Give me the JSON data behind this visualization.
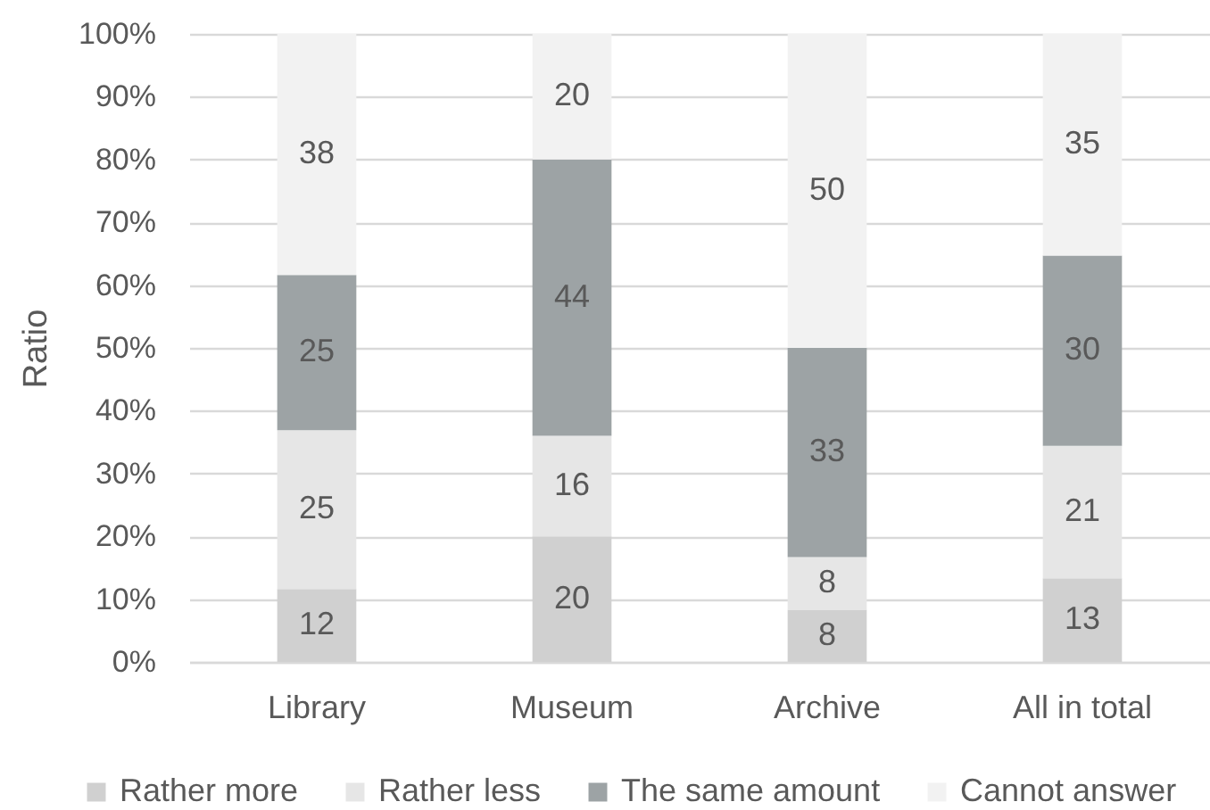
{
  "chart_data": {
    "type": "bar",
    "stacked": true,
    "ylabel": "Ratio",
    "categories": [
      "Library",
      "Museum",
      "Archive",
      "All in total"
    ],
    "series": [
      {
        "name": "Rather more",
        "color": "#d0d0d0",
        "values": [
          11.6,
          20,
          8.3,
          13.3
        ],
        "value_labels": [
          "12",
          "20",
          "8",
          "13"
        ]
      },
      {
        "name": "Rather less",
        "color": "#e6e6e6",
        "values": [
          25.3,
          16,
          8.4,
          21.1
        ],
        "value_labels": [
          "25",
          "16",
          "8",
          "21"
        ]
      },
      {
        "name": "The same amount",
        "color": "#9da3a5",
        "values": [
          24.7,
          44,
          33.3,
          30.3
        ],
        "value_labels": [
          "25",
          "44",
          "33",
          "30"
        ]
      },
      {
        "name": "Cannot answer",
        "color": "#f2f2f2",
        "values": [
          38.4,
          20,
          50,
          35.3
        ],
        "value_labels": [
          "38",
          "20",
          "50",
          "35"
        ]
      }
    ],
    "ylim": [
      0,
      100
    ],
    "yticks": [
      {
        "value": 0,
        "label": "0%"
      },
      {
        "value": 10,
        "label": "10%"
      },
      {
        "value": 20,
        "label": "20%"
      },
      {
        "value": 30,
        "label": "30%"
      },
      {
        "value": 40,
        "label": "40%"
      },
      {
        "value": 50,
        "label": "50%"
      },
      {
        "value": 60,
        "label": "60%"
      },
      {
        "value": 70,
        "label": "70%"
      },
      {
        "value": 80,
        "label": "80%"
      },
      {
        "value": 90,
        "label": "90%"
      },
      {
        "value": 100,
        "label": "100%"
      }
    ],
    "grid": "y",
    "legend": "bottom"
  }
}
